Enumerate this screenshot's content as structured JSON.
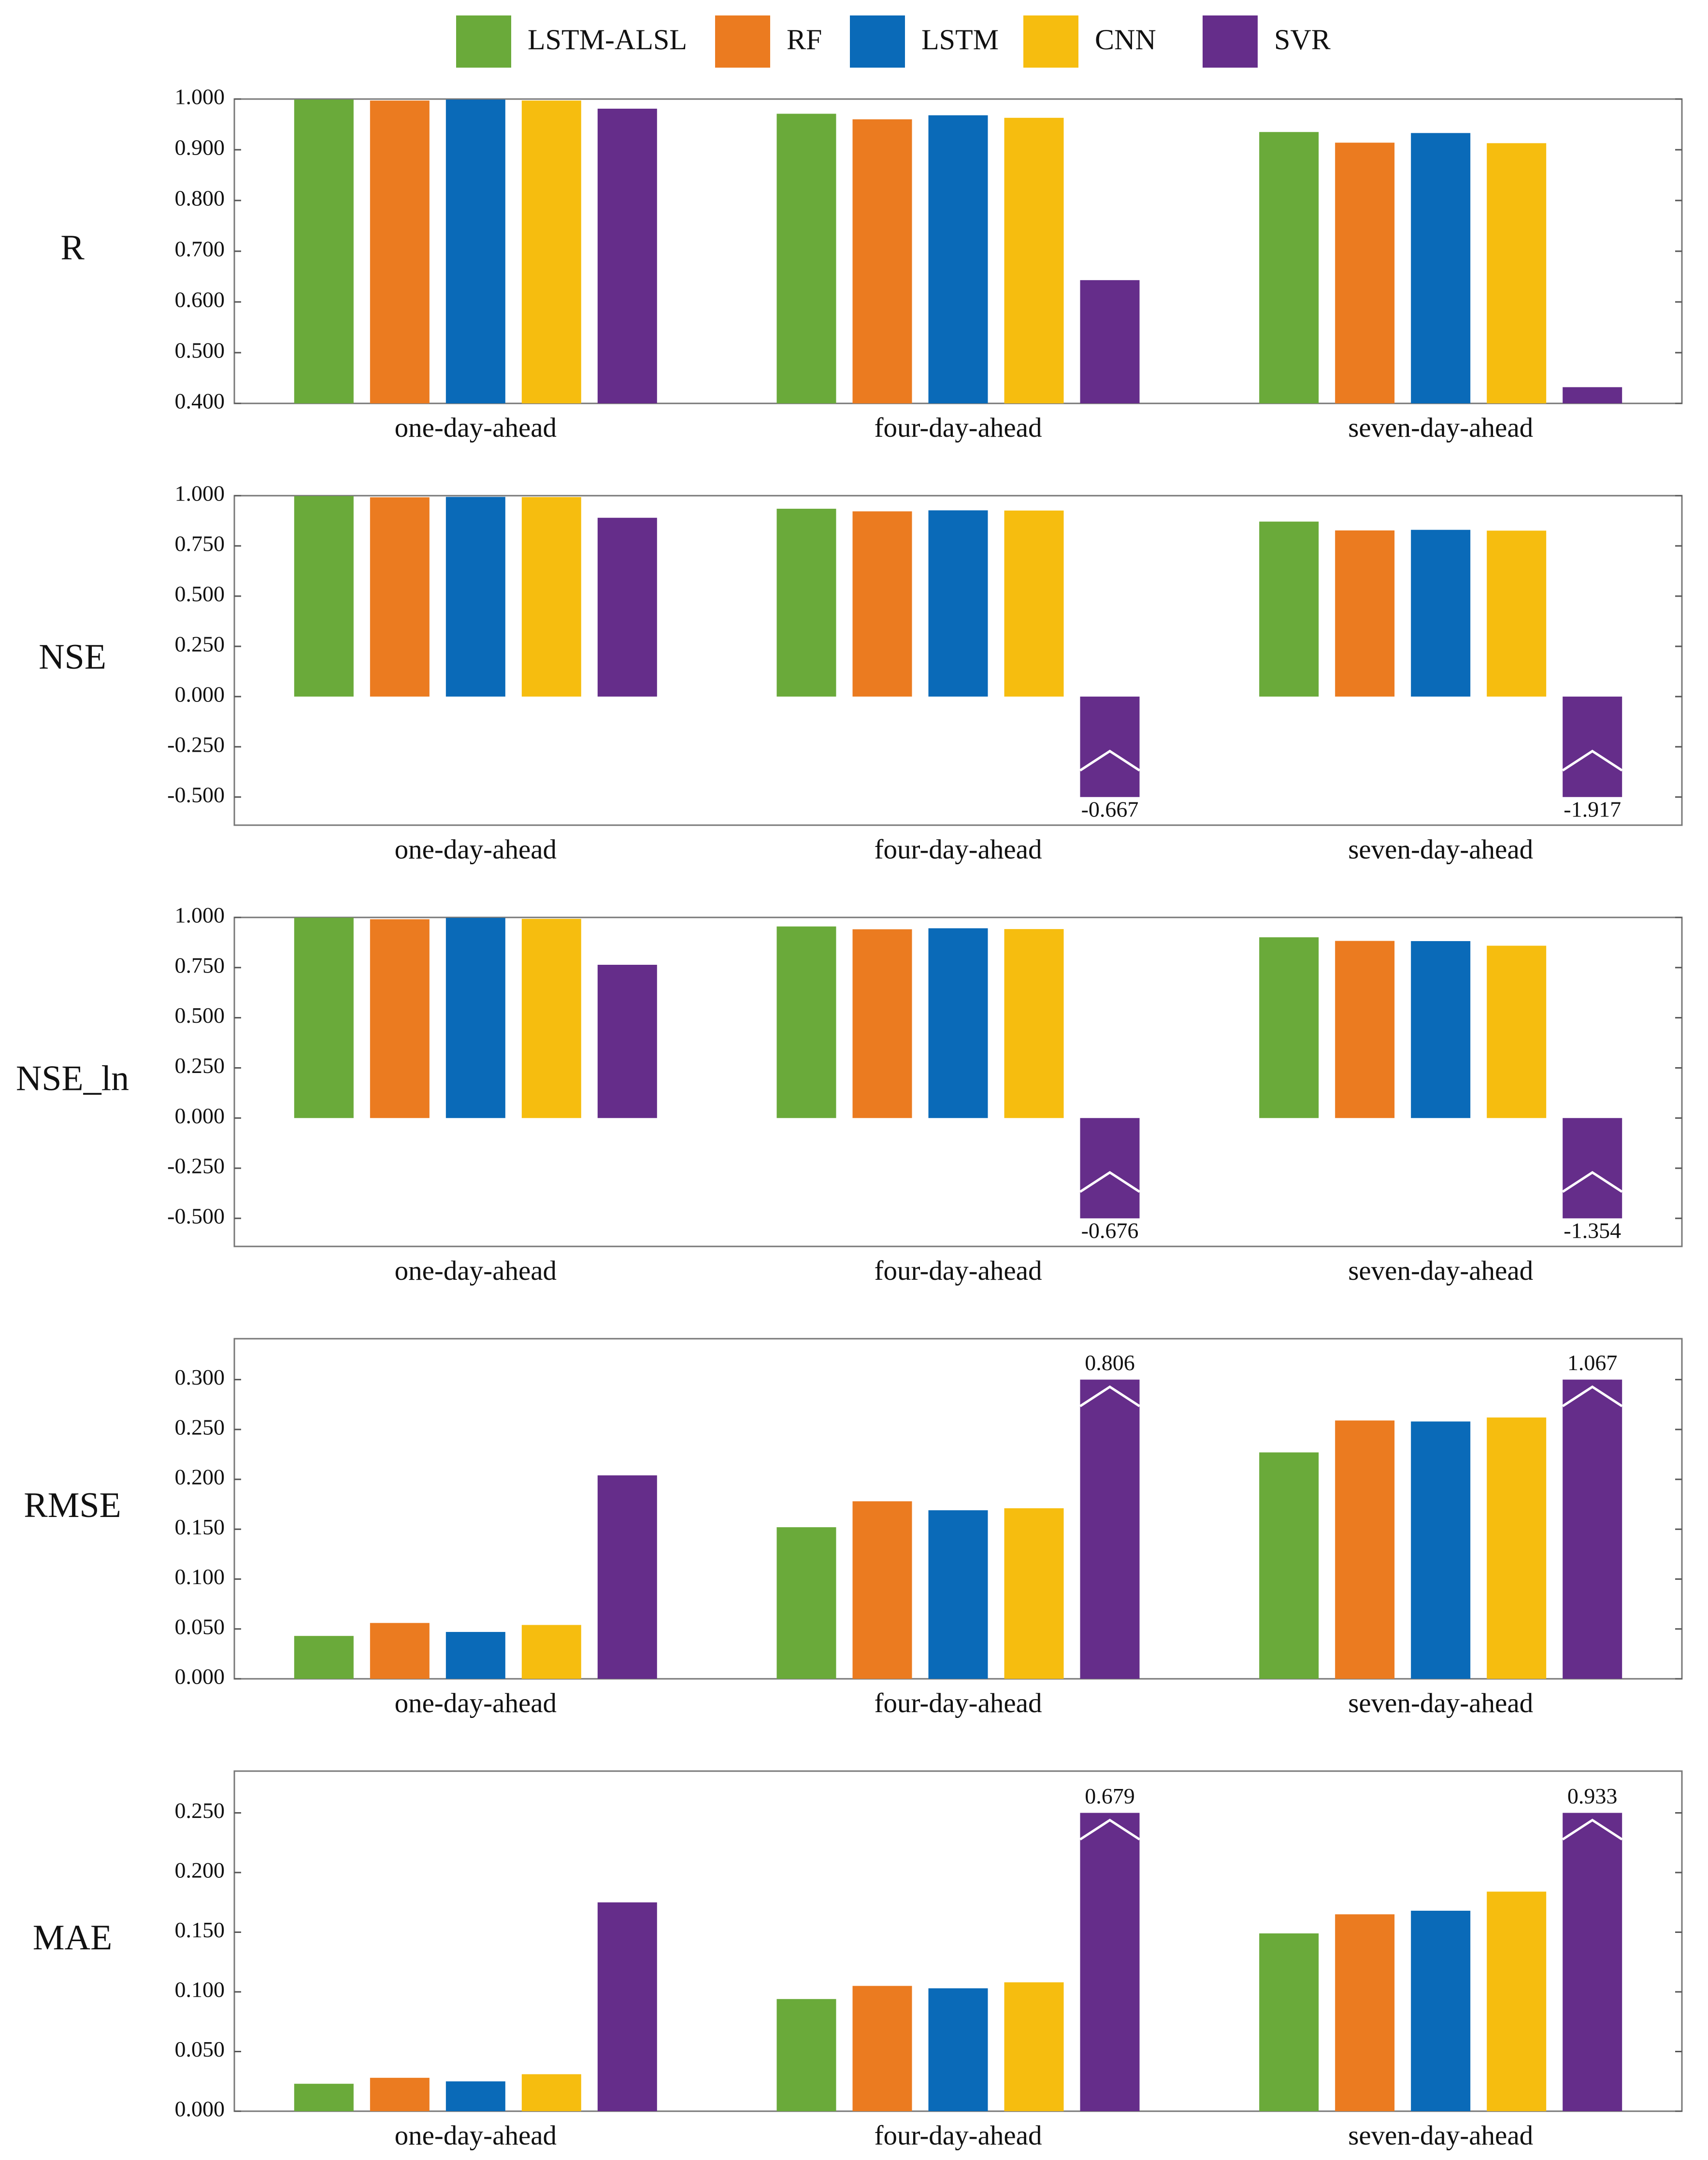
{
  "chart_data": [
    {
      "type": "bar",
      "ylabel": "R",
      "categories": [
        "one-day-ahead",
        "four-day-ahead",
        "seven-day-ahead"
      ],
      "series": [
        {
          "name": "LSTM-ALSL",
          "color": "#6aaa3a",
          "values": [
            0.999,
            0.971,
            0.935
          ]
        },
        {
          "name": "RF",
          "color": "#eb7b20",
          "values": [
            0.997,
            0.96,
            0.914
          ]
        },
        {
          "name": "LSTM",
          "color": "#0a6ab8",
          "values": [
            0.999,
            0.968,
            0.933
          ]
        },
        {
          "name": "CNN",
          "color": "#f6bd0f",
          "values": [
            0.997,
            0.963,
            0.913
          ]
        },
        {
          "name": "SVR",
          "color": "#652d8a",
          "values": [
            0.981,
            0.643,
            0.432
          ]
        }
      ],
      "ylim": [
        0.4,
        1.0
      ],
      "yticks": [
        {
          "value": 0.4,
          "label": "0.400"
        },
        {
          "value": 0.5,
          "label": "0.500"
        },
        {
          "value": 0.6,
          "label": "0.600"
        },
        {
          "value": 0.7,
          "label": "0.700"
        },
        {
          "value": 0.8,
          "label": "0.800"
        },
        {
          "value": 0.9,
          "label": "0.900"
        },
        {
          "value": 1.0,
          "label": "1.000"
        }
      ],
      "grid": false
    },
    {
      "type": "bar",
      "ylabel": "NSE",
      "categories": [
        "one-day-ahead",
        "four-day-ahead",
        "seven-day-ahead"
      ],
      "series": [
        {
          "color": "#6aaa3a",
          "values": [
            0.998,
            0.935,
            0.871
          ]
        },
        {
          "color": "#eb7b20",
          "values": [
            0.992,
            0.922,
            0.827
          ]
        },
        {
          "color": "#0a6ab8",
          "values": [
            0.994,
            0.927,
            0.83
          ]
        },
        {
          "color": "#f6bd0f",
          "values": [
            0.993,
            0.926,
            0.826
          ]
        },
        {
          "color": "#652d8a",
          "values": [
            0.89,
            -0.667,
            -1.917
          ],
          "value_labels": [
            null,
            "-0.667",
            "-1.917"
          ]
        }
      ],
      "ylim": [
        -0.64,
        1.0
      ],
      "axis_break": -0.5,
      "yticks": [
        {
          "value": -0.5,
          "label": "-0.500"
        },
        {
          "value": -0.25,
          "label": "-0.250"
        },
        {
          "value": 0,
          "label": "0.000"
        },
        {
          "value": 0.25,
          "label": "0.250"
        },
        {
          "value": 0.5,
          "label": "0.500"
        },
        {
          "value": 0.75,
          "label": "0.750"
        },
        {
          "value": 1.0,
          "label": "1.000"
        }
      ],
      "grid": false
    },
    {
      "type": "bar",
      "ylabel": "NSE_ln",
      "categories": [
        "one-day-ahead",
        "four-day-ahead",
        "seven-day-ahead"
      ],
      "series": [
        {
          "color": "#6aaa3a",
          "values": [
            0.999,
            0.955,
            0.901
          ]
        },
        {
          "color": "#eb7b20",
          "values": [
            0.991,
            0.941,
            0.883
          ]
        },
        {
          "color": "#0a6ab8",
          "values": [
            0.998,
            0.946,
            0.882
          ]
        },
        {
          "color": "#f6bd0f",
          "values": [
            0.993,
            0.942,
            0.859
          ]
        },
        {
          "color": "#652d8a",
          "values": [
            0.764,
            -0.676,
            -1.354
          ],
          "value_labels": [
            null,
            "-0.676",
            "-1.354"
          ]
        }
      ],
      "ylim": [
        -0.64,
        1.0
      ],
      "axis_break": -0.5,
      "yticks": [
        {
          "value": -0.5,
          "label": "-0.500"
        },
        {
          "value": -0.25,
          "label": "-0.250"
        },
        {
          "value": 0,
          "label": "0.000"
        },
        {
          "value": 0.25,
          "label": "0.250"
        },
        {
          "value": 0.5,
          "label": "0.500"
        },
        {
          "value": 0.75,
          "label": "0.750"
        },
        {
          "value": 1.0,
          "label": "1.000"
        }
      ],
      "grid": false
    },
    {
      "type": "bar",
      "ylabel": "RMSE",
      "categories": [
        "one-day-ahead",
        "four-day-ahead",
        "seven-day-ahead"
      ],
      "series": [
        {
          "color": "#6aaa3a",
          "values": [
            0.043,
            0.152,
            0.227
          ]
        },
        {
          "color": "#eb7b20",
          "values": [
            0.056,
            0.178,
            0.259
          ]
        },
        {
          "color": "#0a6ab8",
          "values": [
            0.047,
            0.169,
            0.258
          ]
        },
        {
          "color": "#f6bd0f",
          "values": [
            0.054,
            0.171,
            0.262
          ]
        },
        {
          "color": "#652d8a",
          "values": [
            0.204,
            0.806,
            1.067
          ],
          "value_labels": [
            null,
            "0.806",
            "1.067"
          ]
        }
      ],
      "ylim": [
        0,
        0.341
      ],
      "axis_break": 0.3,
      "yticks": [
        {
          "value": 0,
          "label": "0.000"
        },
        {
          "value": 0.05,
          "label": "0.050"
        },
        {
          "value": 0.1,
          "label": "0.100"
        },
        {
          "value": 0.15,
          "label": "0.150"
        },
        {
          "value": 0.2,
          "label": "0.200"
        },
        {
          "value": 0.25,
          "label": "0.250"
        },
        {
          "value": 0.3,
          "label": "0.300"
        }
      ],
      "grid": false
    },
    {
      "type": "bar",
      "ylabel": "MAE",
      "categories": [
        "one-day-ahead",
        "four-day-ahead",
        "seven-day-ahead"
      ],
      "series": [
        {
          "color": "#6aaa3a",
          "values": [
            0.023,
            0.094,
            0.149
          ]
        },
        {
          "color": "#eb7b20",
          "values": [
            0.028,
            0.105,
            0.165
          ]
        },
        {
          "color": "#0a6ab8",
          "values": [
            0.025,
            0.103,
            0.168
          ]
        },
        {
          "color": "#f6bd0f",
          "values": [
            0.031,
            0.108,
            0.184
          ]
        },
        {
          "color": "#652d8a",
          "values": [
            0.175,
            0.679,
            0.933
          ],
          "value_labels": [
            null,
            "0.679",
            "0.933"
          ]
        }
      ],
      "ylim": [
        0,
        0.285
      ],
      "axis_break": 0.25,
      "yticks": [
        {
          "value": 0,
          "label": "0.000"
        },
        {
          "value": 0.05,
          "label": "0.050"
        },
        {
          "value": 0.1,
          "label": "0.100"
        },
        {
          "value": 0.15,
          "label": "0.150"
        },
        {
          "value": 0.2,
          "label": "0.200"
        },
        {
          "value": 0.25,
          "label": "0.250"
        }
      ],
      "grid": false
    }
  ]
}
